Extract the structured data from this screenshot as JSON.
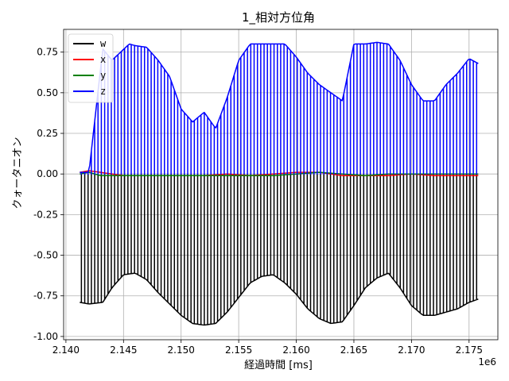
{
  "chart_data": {
    "type": "line",
    "title": "1_相対方位角",
    "xlabel": "経過時間 [ms]",
    "ylabel": "クォータニオン",
    "x_offset_label": "1e6",
    "xlim": [
      2.1398,
      2.1775
    ],
    "ylim": [
      -1.02,
      0.89
    ],
    "x_ticks": [
      2.14,
      2.145,
      2.15,
      2.155,
      2.16,
      2.165,
      2.17,
      2.175
    ],
    "x_tick_labels": [
      "2.140",
      "2.145",
      "2.150",
      "2.155",
      "2.160",
      "2.165",
      "2.170",
      "2.175"
    ],
    "y_ticks": [
      -1.0,
      -0.75,
      -0.5,
      -0.25,
      0.0,
      0.25,
      0.5,
      0.75
    ],
    "y_tick_labels": [
      "-1.00",
      "-0.75",
      "-0.50",
      "-0.25",
      "0.00",
      "0.25",
      "0.50",
      "0.75"
    ],
    "grid": true,
    "legend_position": "top-left",
    "series": [
      {
        "name": "w",
        "color": "#000000",
        "style": "rapid-flip",
        "baseline": 0.0,
        "x": [
          2.1412,
          2.142,
          2.1432,
          2.144,
          2.145,
          2.146,
          2.147,
          2.148,
          2.149,
          2.15,
          2.151,
          2.152,
          2.153,
          2.154,
          2.155,
          2.156,
          2.157,
          2.158,
          2.159,
          2.16,
          2.161,
          2.162,
          2.163,
          2.164,
          2.165,
          2.166,
          2.167,
          2.168,
          2.169,
          2.17,
          2.171,
          2.172,
          2.173,
          2.174,
          2.175,
          2.1758
        ],
        "y": [
          -0.79,
          -0.8,
          -0.79,
          -0.7,
          -0.62,
          -0.61,
          -0.65,
          -0.73,
          -0.8,
          -0.87,
          -0.92,
          -0.93,
          -0.92,
          -0.85,
          -0.76,
          -0.67,
          -0.63,
          -0.62,
          -0.67,
          -0.74,
          -0.83,
          -0.89,
          -0.92,
          -0.91,
          -0.81,
          -0.7,
          -0.64,
          -0.61,
          -0.7,
          -0.81,
          -0.87,
          -0.87,
          -0.85,
          -0.83,
          -0.79,
          -0.77
        ]
      },
      {
        "name": "x",
        "color": "#ff0000",
        "style": "line",
        "x": [
          2.1412,
          2.142,
          2.143,
          2.145,
          2.148,
          2.15,
          2.152,
          2.154,
          2.156,
          2.158,
          2.16,
          2.162,
          2.164,
          2.166,
          2.168,
          2.17,
          2.172,
          2.174,
          2.1758
        ],
        "y": [
          0.01,
          0.02,
          0.01,
          -0.01,
          -0.01,
          -0.01,
          -0.01,
          0.0,
          -0.01,
          0.0,
          0.01,
          0.01,
          -0.01,
          -0.01,
          -0.01,
          0.0,
          -0.01,
          -0.01,
          -0.01
        ]
      },
      {
        "name": "y",
        "color": "#008000",
        "style": "line",
        "x": [
          2.1412,
          2.142,
          2.143,
          2.145,
          2.148,
          2.15,
          2.152,
          2.154,
          2.156,
          2.158,
          2.16,
          2.162,
          2.164,
          2.166,
          2.168,
          2.17,
          2.172,
          2.174,
          2.1758
        ],
        "y": [
          0.0,
          0.01,
          -0.01,
          -0.01,
          -0.01,
          -0.01,
          -0.01,
          -0.01,
          -0.01,
          -0.01,
          0.0,
          0.01,
          0.0,
          -0.01,
          0.0,
          0.0,
          0.0,
          0.0,
          0.0
        ]
      },
      {
        "name": "z",
        "color": "#0000ff",
        "style": "rapid-flip",
        "baseline": 0.0,
        "x": [
          2.1412,
          2.142,
          2.1432,
          2.144,
          2.1455,
          2.146,
          2.147,
          2.148,
          2.149,
          2.15,
          2.151,
          2.152,
          2.153,
          2.154,
          2.155,
          2.156,
          2.157,
          2.158,
          2.159,
          2.16,
          2.161,
          2.162,
          2.163,
          2.164,
          2.165,
          2.166,
          2.167,
          2.168,
          2.169,
          2.17,
          2.171,
          2.172,
          2.173,
          2.174,
          2.175,
          2.1758
        ],
        "y": [
          0.01,
          0.01,
          0.77,
          0.7,
          0.8,
          0.79,
          0.78,
          0.7,
          0.6,
          0.4,
          0.32,
          0.38,
          0.28,
          0.47,
          0.7,
          0.8,
          0.8,
          0.8,
          0.8,
          0.72,
          0.62,
          0.55,
          0.5,
          0.45,
          0.8,
          0.8,
          0.81,
          0.8,
          0.7,
          0.55,
          0.45,
          0.45,
          0.55,
          0.62,
          0.71,
          0.68
        ]
      }
    ]
  }
}
